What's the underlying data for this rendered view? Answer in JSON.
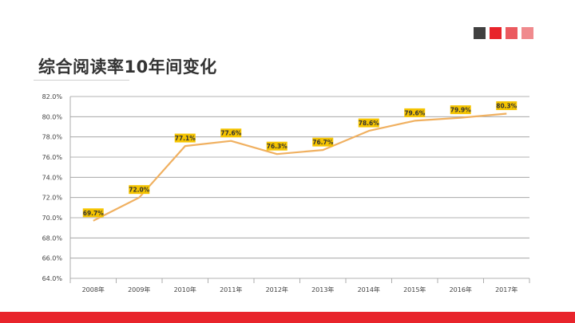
{
  "slide": {
    "title": "综合阅读率10年间变化",
    "colors": {
      "square_1": "#404040",
      "square_2": "#e8242b",
      "square_3": "#eb5a5f",
      "square_4": "#f08a8d",
      "bottom_bar": "#e8242b"
    }
  },
  "chart_data": {
    "type": "line",
    "categories": [
      "2008年",
      "2009年",
      "2010年",
      "2011年",
      "2012年",
      "2013年",
      "2014年",
      "2015年",
      "2016年",
      "2017年"
    ],
    "series": [
      {
        "values": [
          69.7,
          72.0,
          77.1,
          77.6,
          76.3,
          76.7,
          78.6,
          79.6,
          79.9,
          80.3
        ],
        "labels": [
          "69.7%",
          "72.0%",
          "77.1%",
          "77.6%",
          "76.3%",
          "76.7%",
          "78.6%",
          "79.6%",
          "79.9%",
          "80.3%"
        ],
        "color": "#f0b060",
        "label_bg": "#f5c400"
      }
    ],
    "ylim": [
      64,
      82
    ],
    "yticks": [
      64,
      66,
      68,
      70,
      72,
      74,
      76,
      78,
      80,
      82
    ],
    "ytick_labels": [
      "64.0%",
      "66.0%",
      "68.0%",
      "70.0%",
      "72.0%",
      "74.0%",
      "76.0%",
      "78.0%",
      "80.0%",
      "82.0%"
    ],
    "grid": true,
    "legend": false
  }
}
